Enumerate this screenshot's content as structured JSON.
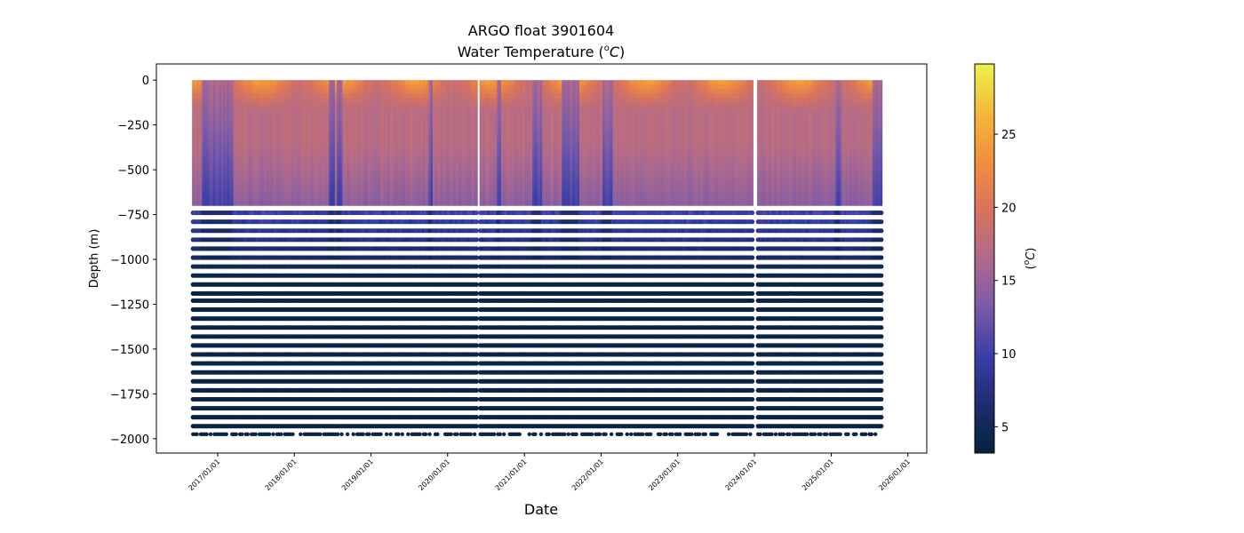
{
  "chart_data": {
    "type": "scatter",
    "title_line1": "ARGO float 3901604",
    "title_prefix": "Water Temperature (",
    "title_sup": "o",
    "title_unit": "C",
    "title_suffix": ")",
    "xlabel": "Date",
    "ylabel": "Depth (m)",
    "colorbar_label_prefix": "(",
    "colorbar_label_sup": "o",
    "colorbar_label_unit": "C",
    "colorbar_label_suffix": ")",
    "colormap": "thermal",
    "colormap_stops": [
      "#04233a",
      "#1e2d6e",
      "#3b3ea8",
      "#7a5aa8",
      "#b06a8c",
      "#d8735c",
      "#f08f3e",
      "#f5b83a",
      "#e9f24d"
    ],
    "color_range": [
      3.2,
      29.8
    ],
    "colorbar_ticks": [
      5,
      10,
      15,
      20,
      25
    ],
    "x_start_date": "2016-09-01",
    "x_end_date": "2025-09-01",
    "xlim": [
      "2016-03-15",
      "2026-04-01"
    ],
    "x_tick_dates": [
      "2017/01/01",
      "2018/01/01",
      "2019/01/01",
      "2020/01/01",
      "2021/01/01",
      "2022/01/01",
      "2023/01/01",
      "2024/01/01",
      "2025/01/01",
      "2026/01/01"
    ],
    "y_ticks": [
      0,
      -250,
      -500,
      -750,
      -1000,
      -1250,
      -1500,
      -1750,
      -2000
    ],
    "ylim": [
      -2080,
      90
    ],
    "dense_depth_limit": -700,
    "surface_warm_temp": 25.5,
    "mixed_layer_temp": 18.0,
    "deep_temp": 4.0,
    "cold_intrusions_start": [
      "2016-10-15",
      "2018-06-10",
      "2018-07-15",
      "2019-10-01",
      "2020-08-15",
      "2021-02-01",
      "2021-06-20",
      "2022-01-05",
      "2025-01-15",
      "2025-07-15"
    ],
    "cold_intrusions_end": [
      "2017-03-10",
      "2018-07-05",
      "2018-08-10",
      "2019-10-20",
      "2020-09-10",
      "2021-03-20",
      "2021-09-10",
      "2022-02-15",
      "2025-02-10",
      "2025-08-25"
    ],
    "data_gaps": [
      "2020-05-25",
      "2023-12-31"
    ],
    "deep_levels": [
      -740,
      -790,
      -840,
      -890,
      -940,
      -990,
      -1040,
      -1090,
      -1140,
      -1190,
      -1230,
      -1280,
      -1330,
      -1380,
      -1430,
      -1480,
      -1530,
      -1580,
      -1630,
      -1680,
      -1730,
      -1780,
      -1830,
      -1880,
      -1930,
      -1975
    ]
  }
}
